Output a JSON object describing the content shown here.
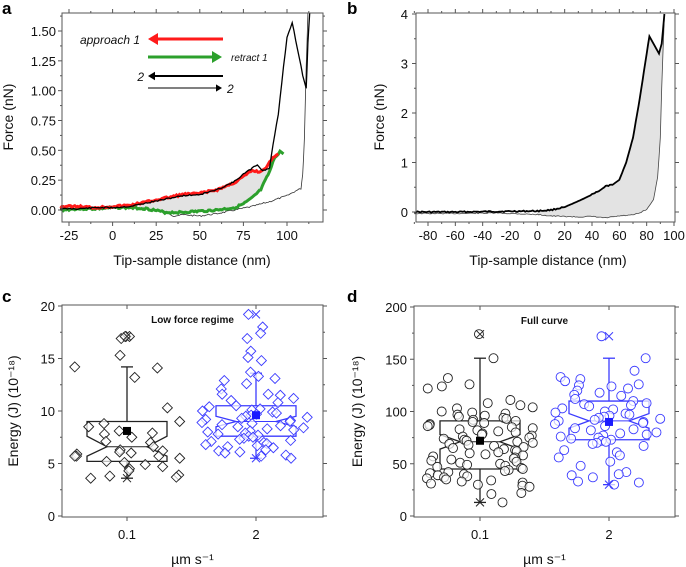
{
  "figure": {
    "panel_letters": [
      "a",
      "b",
      "c",
      "d"
    ]
  },
  "chart_data": [
    {
      "panel": "a",
      "type": "line",
      "title": "",
      "xlabel": "Tip-sample distance (nm)",
      "ylabel": "Force (nN)",
      "xlim": [
        -30,
        115
      ],
      "ylim": [
        -0.1,
        1.65
      ],
      "xticks": [
        -25,
        0,
        25,
        50,
        75,
        100
      ],
      "xtick_labels": [
        "-25",
        "0",
        "25",
        "50",
        "75",
        "100"
      ],
      "yticks": [
        0,
        0.25,
        0.5,
        0.75,
        1.0,
        1.25,
        1.5
      ],
      "ytick_labels": [
        "0.00",
        "0.25",
        "0.50",
        "0.75",
        "1.00",
        "1.25",
        "1.50"
      ],
      "legend": [
        {
          "label": "approach 1",
          "color": "#ff1a1a",
          "direction": "left"
        },
        {
          "label": "retract 1",
          "color": "#2ca02c",
          "direction": "right"
        },
        {
          "label": "2",
          "color": "#000000",
          "direction": "left"
        },
        {
          "label": "2",
          "color": "#000000",
          "direction": "right"
        }
      ],
      "series": [
        {
          "name": "approach 1",
          "color": "#ff1a1a",
          "x": [
            -30,
            -20,
            -10,
            0,
            10,
            20,
            30,
            40,
            50,
            60,
            70,
            75,
            80,
            85,
            88,
            90,
            93,
            95
          ],
          "y": [
            0.03,
            0.03,
            0.02,
            0.03,
            0.04,
            0.07,
            0.1,
            0.13,
            0.14,
            0.17,
            0.23,
            0.28,
            0.33,
            0.32,
            0.36,
            0.4,
            0.45,
            0.47
          ]
        },
        {
          "name": "retract 1",
          "color": "#2ca02c",
          "x": [
            -30,
            -20,
            -10,
            0,
            10,
            20,
            30,
            40,
            50,
            60,
            70,
            75,
            80,
            85,
            90,
            93,
            96,
            98
          ],
          "y": [
            0.0,
            0.01,
            0.01,
            0.02,
            0.02,
            0.01,
            -0.02,
            -0.02,
            -0.01,
            0.0,
            0.02,
            0.05,
            0.1,
            0.17,
            0.32,
            0.44,
            0.49,
            0.47
          ]
        },
        {
          "name": "approach 2",
          "color": "#000000",
          "x": [
            -30,
            -20,
            -10,
            0,
            10,
            20,
            30,
            40,
            50,
            60,
            70,
            75,
            80,
            83,
            86,
            90,
            92,
            95,
            98,
            100,
            103,
            106,
            109,
            111,
            112,
            113
          ],
          "y": [
            0.01,
            0.01,
            0.02,
            0.02,
            0.03,
            0.06,
            0.09,
            0.12,
            0.13,
            0.17,
            0.24,
            0.3,
            0.35,
            0.38,
            0.33,
            0.35,
            0.55,
            0.8,
            1.2,
            1.45,
            1.57,
            1.35,
            1.13,
            1.02,
            1.4,
            1.65
          ]
        },
        {
          "name": "retract 2",
          "color": "#000000",
          "x": [
            -30,
            -10,
            10,
            20,
            30,
            35,
            40,
            50,
            60,
            70,
            80,
            90,
            100,
            105,
            108,
            109,
            110,
            111,
            112
          ],
          "y": [
            0.01,
            0.01,
            0.02,
            0.01,
            -0.01,
            -0.05,
            -0.04,
            -0.05,
            -0.03,
            0.0,
            0.03,
            0.07,
            0.12,
            0.16,
            0.18,
            0.3,
            0.6,
            1.2,
            1.65
          ]
        }
      ],
      "shaded_area": "between approach 1 and retract 1 (light grey)"
    },
    {
      "panel": "b",
      "type": "line",
      "title": "",
      "xlabel": "Tip-sample distance (nm)",
      "ylabel": "Force (nN)",
      "xlim": [
        -90,
        100
      ],
      "ylim": [
        -0.25,
        4
      ],
      "xticks": [
        -80,
        -60,
        -40,
        -20,
        0,
        20,
        40,
        60,
        80,
        100
      ],
      "xtick_labels": [
        "-80",
        "-60",
        "-40",
        "-20",
        "0",
        "20",
        "40",
        "60",
        "80",
        "100"
      ],
      "yticks": [
        0,
        1,
        2,
        3,
        4
      ],
      "ytick_labels": [
        "0",
        "1",
        "2",
        "3",
        "4"
      ],
      "series": [
        {
          "name": "approach",
          "color": "#000000",
          "x": [
            -90,
            -60,
            -30,
            0,
            10,
            20,
            30,
            40,
            45,
            50,
            55,
            60,
            65,
            70,
            75,
            80,
            82,
            86,
            89,
            91,
            93
          ],
          "y": [
            0.0,
            0.0,
            0.01,
            0.02,
            0.04,
            0.1,
            0.22,
            0.35,
            0.42,
            0.52,
            0.55,
            0.65,
            1.0,
            1.5,
            2.3,
            3.2,
            3.55,
            3.35,
            3.2,
            3.4,
            4.0
          ]
        },
        {
          "name": "retract",
          "color": "#555555",
          "x": [
            -90,
            -60,
            -30,
            0,
            10,
            20,
            30,
            40,
            50,
            60,
            70,
            75,
            80,
            85,
            88,
            90,
            91,
            92,
            93
          ],
          "y": [
            -0.03,
            -0.03,
            -0.02,
            -0.05,
            -0.08,
            -0.09,
            -0.1,
            -0.09,
            -0.12,
            -0.08,
            -0.06,
            -0.02,
            0.05,
            0.25,
            0.7,
            1.5,
            2.5,
            3.3,
            4.0
          ]
        }
      ],
      "shaded_area": "between approach and retract (light grey)"
    },
    {
      "panel": "c",
      "type": "scatter",
      "subtitle": "Low force regime",
      "xlabel": "µm s⁻¹",
      "ylabel": "Energy (J) (10⁻¹⁸)",
      "ylim": [
        0,
        20
      ],
      "yticks": [
        0,
        5,
        10,
        15,
        20
      ],
      "ytick_labels": [
        "0",
        "5",
        "10",
        "15",
        "20"
      ],
      "categories": [
        "0.1",
        "2"
      ],
      "marker": "diamond",
      "series": [
        {
          "name": "0.1",
          "color": "#222222",
          "box": {
            "q1": 5.2,
            "median": 6.6,
            "q3": 9.0,
            "notch_low": 5.7,
            "notch_high": 7.6,
            "whisker_low": 3.6,
            "whisker_high": 14.2,
            "mean": 8.1,
            "min": 3.6,
            "max": 17.1
          },
          "values": [
            17.1,
            17.1,
            16.9,
            17.1,
            15.3,
            14.2,
            14.1,
            13.2,
            10.3,
            9.0,
            8.8,
            8.5,
            8.1,
            7.9,
            7.8,
            7.5,
            7.1,
            7.0,
            6.6,
            6.3,
            6.2,
            6.1,
            6.0,
            5.9,
            5.7,
            5.7,
            5.7,
            5.5,
            5.2,
            5.1,
            4.9,
            4.7,
            4.5,
            4.3,
            3.9,
            3.8,
            3.7,
            3.6
          ]
        },
        {
          "name": "2",
          "color": "#3b3bff",
          "box": {
            "q1": 7.6,
            "median": 9.0,
            "q3": 10.5,
            "notch_low": 8.5,
            "notch_high": 9.5,
            "whisker_low": 5.5,
            "whisker_high": 13.6,
            "mean": 9.6,
            "min": 5.5,
            "max": 19.2
          },
          "values": [
            19.2,
            18.0,
            17.4,
            16.9,
            15.7,
            15.1,
            14.8,
            13.7,
            13.3,
            13.1,
            12.9,
            12.6,
            12.1,
            11.6,
            11.6,
            11.5,
            11.2,
            11.0,
            10.8,
            10.5,
            10.4,
            10.2,
            10.1,
            10.0,
            9.9,
            9.8,
            9.7,
            9.6,
            9.5,
            9.4,
            9.3,
            9.2,
            9.1,
            9.0,
            8.9,
            8.8,
            8.7,
            8.6,
            8.5,
            8.4,
            8.3,
            8.2,
            8.1,
            8.0,
            7.9,
            7.8,
            7.7,
            7.6,
            7.5,
            7.4,
            7.3,
            7.2,
            7.1,
            7.0,
            6.9,
            6.8,
            6.7,
            6.6,
            6.5,
            6.3,
            6.2,
            6.1,
            6.0,
            5.8,
            5.7,
            5.5
          ]
        }
      ]
    },
    {
      "panel": "d",
      "type": "scatter",
      "subtitle": "Full curve",
      "xlabel": "µm s⁻¹",
      "ylabel": "Energy (J) (10⁻¹⁸)",
      "ylim": [
        0,
        200
      ],
      "yticks": [
        0,
        50,
        100,
        150,
        200
      ],
      "ytick_labels": [
        "0",
        "50",
        "100",
        "150",
        "200"
      ],
      "categories": [
        "0.1",
        "2"
      ],
      "marker": "circle",
      "series": [
        {
          "name": "0.1",
          "color": "#222222",
          "box": {
            "q1": 45,
            "median": 71,
            "q3": 91,
            "notch_low": 64,
            "notch_high": 78,
            "whisker_low": 13,
            "whisker_high": 151,
            "mean": 72,
            "min": 13,
            "max": 174
          },
          "values": [
            174,
            151,
            132,
            126,
            124,
            122,
            111,
            108,
            106,
            104,
            103,
            100,
            99,
            98,
            97,
            96,
            95,
            94,
            93,
            92,
            91,
            90,
            89,
            88,
            87,
            86,
            85,
            84,
            83,
            82,
            81,
            80,
            79,
            78,
            77,
            76,
            75,
            74,
            73,
            72,
            71,
            70,
            69,
            68,
            67,
            66,
            65,
            64,
            63,
            62,
            61,
            60,
            59,
            58,
            57,
            56,
            55,
            54,
            53,
            52,
            51,
            50,
            49,
            48,
            47,
            46,
            45,
            44,
            43,
            42,
            41,
            40,
            39,
            38,
            37,
            36,
            35,
            34,
            33,
            32,
            31,
            30,
            29,
            28,
            22,
            21,
            13
          ]
        },
        {
          "name": "2",
          "color": "#3b3bff",
          "box": {
            "q1": 73,
            "median": 91,
            "q3": 110,
            "notch_low": 84,
            "notch_high": 98,
            "whisker_low": 30,
            "whisker_high": 151,
            "mean": 90,
            "min": 30,
            "max": 172
          },
          "values": [
            172,
            151,
            139,
            133,
            131,
            129,
            126,
            125,
            124,
            122,
            120,
            118,
            116,
            115,
            112,
            110,
            108,
            107,
            106,
            105,
            103,
            102,
            100,
            99,
            98,
            97,
            96,
            95,
            94,
            93,
            92,
            91,
            90,
            89,
            88,
            86,
            84,
            83,
            82,
            80,
            79,
            78,
            77,
            76,
            75,
            74,
            73,
            72,
            71,
            70,
            69,
            67,
            63,
            61,
            58,
            56,
            52,
            48,
            42,
            40,
            39,
            37,
            33,
            32,
            30
          ]
        }
      ]
    }
  ]
}
